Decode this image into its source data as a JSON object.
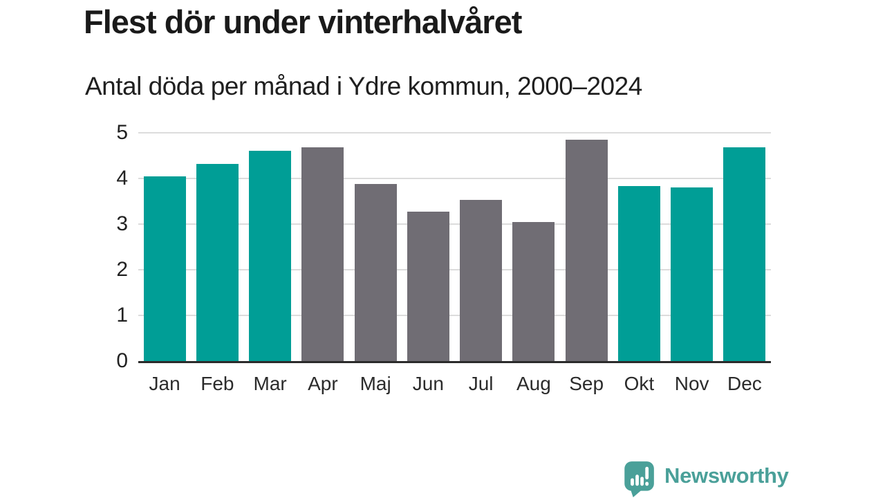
{
  "header": {
    "title": "Flest dör under vinterhalvåret",
    "subtitle": "Antal döda per månad i Ydre kommun, 2000–2024"
  },
  "colors": {
    "bar_winter": "#009e96",
    "bar_summer": "#706d74",
    "gridline": "#dcdcdc",
    "axis_line": "#2b2b2b",
    "text": "#1a1a1a",
    "logo": "#4aa099"
  },
  "chart_data": {
    "type": "bar",
    "title": "Flest dör under vinterhalvåret",
    "subtitle": "Antal döda per månad i Ydre kommun, 2000–2024",
    "categories": [
      "Jan",
      "Feb",
      "Mar",
      "Apr",
      "Maj",
      "Jun",
      "Jul",
      "Aug",
      "Sep",
      "Okt",
      "Nov",
      "Dec"
    ],
    "values": [
      4.05,
      4.32,
      4.61,
      4.68,
      3.88,
      3.28,
      3.53,
      3.04,
      4.85,
      3.84,
      3.8,
      4.68
    ],
    "highlighted": [
      true,
      true,
      true,
      false,
      false,
      false,
      false,
      false,
      false,
      true,
      true,
      true
    ],
    "highlight_meaning": "teal = winter half-year months (Okt–Mar), gray = summer half-year (Apr–Sep)",
    "xlabel": "",
    "ylabel": "",
    "ylim": [
      0,
      5
    ],
    "yticks": [
      0,
      1,
      2,
      3,
      4,
      5
    ],
    "grid": true,
    "legend": false
  },
  "footer": {
    "logo_text": "Newsworthy",
    "logo_icon": "newsworthy-speech-bubble-bar-chart-icon"
  }
}
